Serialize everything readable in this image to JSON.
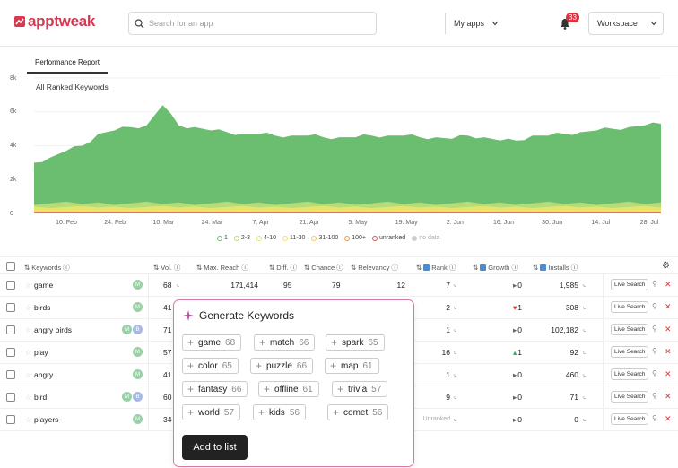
{
  "app": {
    "logo_text": "apptweak",
    "brand_color": "#d63a52"
  },
  "search": {
    "placeholder": "Search for an app",
    "my_apps_label": "My apps"
  },
  "notifications": {
    "count": "33"
  },
  "workspace": {
    "label": "Workspace"
  },
  "tabs": [
    {
      "label": "Performance Report"
    }
  ],
  "chart_data": {
    "type": "area",
    "title": "All Ranked Keywords",
    "y_ticks": [
      "0",
      "2k",
      "4k",
      "6k",
      "8k"
    ],
    "ylim": [
      0,
      8000
    ],
    "x_ticks": [
      "10. Feb",
      "24. Feb",
      "10. Mar",
      "24. Mar",
      "7. Apr",
      "21. Apr",
      "5. May",
      "19. May",
      "2. Jun",
      "16. Jun",
      "30. Jun",
      "14. Jul",
      "28. Jul"
    ],
    "series": [
      {
        "name": "1",
        "color": "#6bbd6f",
        "values": [
          3000,
          3300,
          3700,
          4000,
          4700,
          4900,
          5100,
          5200,
          6400,
          5200,
          5100,
          4900,
          4800,
          4700,
          4700,
          4600,
          4600,
          4600,
          4500,
          4500,
          4500,
          4600,
          4600,
          4600,
          4500,
          4500,
          4400,
          4600,
          4500,
          4300,
          4300,
          4600,
          4600,
          4700,
          4800,
          4900,
          5000,
          5100,
          5200,
          5300
        ]
      },
      {
        "name": "2-3",
        "color": "#b5dc7a"
      },
      {
        "name": "4-10",
        "color": "#e3e66a"
      },
      {
        "name": "11-30",
        "color": "#f3e06d"
      },
      {
        "name": "31-100",
        "color": "#f2c75a"
      },
      {
        "name": "100+",
        "color": "#ef9b4b"
      },
      {
        "name": "unranked",
        "color": "#d9534f"
      },
      {
        "name": "no data",
        "color": "#cccccc"
      }
    ]
  },
  "table": {
    "headers": {
      "keywords": "Keywords",
      "volume": "Vol.",
      "max_reach": "Max. Reach",
      "difficulty": "Diff.",
      "chance": "Chance",
      "relevancy": "Relevancy",
      "rank": "Rank",
      "growth": "Growth",
      "installs": "Installs"
    },
    "live_search_label": "Live Search",
    "rows": [
      {
        "keyword": "game",
        "chips": [
          "M"
        ],
        "volume": "68",
        "max_reach": "171,414",
        "difficulty": "95",
        "chance": "79",
        "relevancy": "12",
        "rank": "7",
        "growth": "0",
        "growth_dir": "flat",
        "installs": "1,985"
      },
      {
        "keyword": "birds",
        "chips": [
          "M"
        ],
        "volume": "41",
        "rank": "2",
        "growth": "1",
        "growth_dir": "down",
        "installs": "308"
      },
      {
        "keyword": "angry birds",
        "chips": [
          "M",
          "B"
        ],
        "volume": "71",
        "rank": "1",
        "growth": "0",
        "growth_dir": "flat",
        "installs": "102,182"
      },
      {
        "keyword": "play",
        "chips": [
          "M"
        ],
        "volume": "57",
        "rank": "16",
        "growth": "1",
        "growth_dir": "up",
        "installs": "92"
      },
      {
        "keyword": "angry",
        "chips": [
          "M"
        ],
        "volume": "41",
        "rank": "1",
        "growth": "0",
        "growth_dir": "flat",
        "installs": "460"
      },
      {
        "keyword": "bird",
        "chips": [
          "M",
          "B"
        ],
        "volume": "60",
        "rank": "9",
        "growth": "0",
        "growth_dir": "flat",
        "installs": "71"
      },
      {
        "keyword": "players",
        "chips": [
          "M"
        ],
        "volume": "34",
        "rank": "Unranked",
        "growth": "0",
        "growth_dir": "flat",
        "installs": "0"
      }
    ]
  },
  "generate_popup": {
    "title": "Generate Keywords",
    "suggestions": [
      {
        "word": "game",
        "score": "68"
      },
      {
        "word": "match",
        "score": "66"
      },
      {
        "word": "spark",
        "score": "65"
      },
      {
        "word": "color",
        "score": "65"
      },
      {
        "word": "puzzle",
        "score": "66"
      },
      {
        "word": "map",
        "score": "61"
      },
      {
        "word": "fantasy",
        "score": "66"
      },
      {
        "word": "offline",
        "score": "61"
      },
      {
        "word": "trivia",
        "score": "57"
      },
      {
        "word": "world",
        "score": "57"
      },
      {
        "word": "kids",
        "score": "56"
      },
      {
        "word": "comet",
        "score": "56"
      }
    ],
    "add_button_label": "Add to list"
  }
}
